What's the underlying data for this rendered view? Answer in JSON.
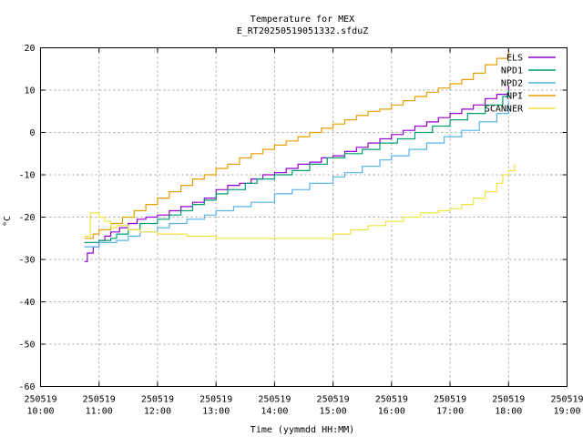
{
  "chart_data": {
    "type": "line",
    "title": "Temperature for MEX",
    "subtitle": "E_RT20250519051332.sfduZ",
    "xlabel": "Time (yymmdd HH:MM)",
    "ylabel": "°C",
    "xlim": [
      10,
      19
    ],
    "ylim": [
      -60,
      20
    ],
    "x_ticks": [
      {
        "value": 10,
        "date": "250519",
        "time": "10:00"
      },
      {
        "value": 11,
        "date": "250519",
        "time": "11:00"
      },
      {
        "value": 12,
        "date": "250519",
        "time": "12:00"
      },
      {
        "value": 13,
        "date": "250519",
        "time": "13:00"
      },
      {
        "value": 14,
        "date": "250519",
        "time": "14:00"
      },
      {
        "value": 15,
        "date": "250519",
        "time": "15:00"
      },
      {
        "value": 16,
        "date": "250519",
        "time": "16:00"
      },
      {
        "value": 17,
        "date": "250519",
        "time": "17:00"
      },
      {
        "value": 18,
        "date": "250519",
        "time": "18:00"
      },
      {
        "value": 19,
        "date": "250519",
        "time": "19:00"
      }
    ],
    "y_ticks": [
      "20",
      "10",
      "0",
      "-10",
      "-20",
      "-30",
      "-40",
      "-50",
      "-60"
    ],
    "y_tick_values": [
      20,
      10,
      0,
      -10,
      -20,
      -30,
      -40,
      -50,
      -60
    ],
    "grid": true,
    "legend_position": "top-right",
    "series": [
      {
        "name": "ELS",
        "color": "#9400d3",
        "x": [
          10.75,
          10.8,
          10.9,
          11.0,
          11.1,
          11.2,
          11.35,
          11.5,
          11.65,
          11.8,
          12.0,
          12.2,
          12.4,
          12.6,
          12.8,
          13.0,
          13.2,
          13.4,
          13.6,
          13.8,
          14.0,
          14.2,
          14.4,
          14.6,
          14.8,
          15.0,
          15.2,
          15.4,
          15.6,
          15.8,
          16.0,
          16.2,
          16.4,
          16.6,
          16.8,
          17.0,
          17.2,
          17.4,
          17.6,
          17.8,
          18.0
        ],
        "y": [
          -30.5,
          -28.5,
          -27,
          -25.5,
          -24.5,
          -23.5,
          -22.5,
          -21.5,
          -20.5,
          -20,
          -19.5,
          -18.5,
          -17.5,
          -16.5,
          -15.5,
          -13.5,
          -12.5,
          -12,
          -11,
          -10,
          -9.5,
          -8.5,
          -7.5,
          -7,
          -6,
          -5.5,
          -4.5,
          -3.5,
          -2.5,
          -1.5,
          -0.5,
          0.5,
          1.5,
          2.5,
          3.5,
          4.5,
          5.5,
          6.5,
          8,
          9,
          11
        ]
      },
      {
        "name": "NPD1",
        "color": "#009e73",
        "x": [
          10.75,
          11.0,
          11.2,
          11.3,
          11.5,
          11.7,
          12.0,
          12.2,
          12.4,
          12.6,
          12.8,
          13.0,
          13.2,
          13.5,
          13.7,
          14.0,
          14.3,
          14.6,
          14.9,
          15.2,
          15.5,
          15.8,
          16.1,
          16.4,
          16.7,
          17.0,
          17.3,
          17.6,
          17.9,
          18.0
        ],
        "y": [
          -26,
          -25.5,
          -25,
          -24,
          -23,
          -21.5,
          -20.5,
          -19.5,
          -18.5,
          -17,
          -16,
          -14.5,
          -13.5,
          -12,
          -11,
          -10,
          -9,
          -7.5,
          -6,
          -5,
          -4,
          -2.5,
          -1.5,
          0,
          1.5,
          3,
          4.5,
          6.5,
          8.5,
          10
        ]
      },
      {
        "name": "NPD2",
        "color": "#56b4e9",
        "x": [
          10.75,
          11.0,
          11.3,
          11.5,
          11.7,
          12.0,
          12.2,
          12.5,
          12.8,
          13.0,
          13.3,
          13.6,
          14.0,
          14.3,
          14.6,
          15.0,
          15.2,
          15.5,
          15.8,
          16.0,
          16.3,
          16.6,
          16.9,
          17.2,
          17.5,
          17.8,
          18.0
        ],
        "y": [
          -27,
          -26,
          -25.5,
          -24.5,
          -23.5,
          -22.5,
          -21.5,
          -20.5,
          -19.5,
          -18.5,
          -17.5,
          -16.5,
          -14.5,
          -13.5,
          -12,
          -10.5,
          -9.5,
          -8,
          -6.5,
          -5.5,
          -4,
          -2.5,
          -1,
          0.5,
          2.5,
          4.5,
          7.5
        ]
      },
      {
        "name": "NPI",
        "color": "#e69f00",
        "x": [
          10.75,
          10.9,
          11.0,
          11.2,
          11.4,
          11.6,
          11.8,
          12.0,
          12.2,
          12.4,
          12.6,
          12.8,
          13.0,
          13.2,
          13.4,
          13.6,
          13.8,
          14.0,
          14.2,
          14.4,
          14.6,
          14.8,
          15.0,
          15.2,
          15.4,
          15.6,
          15.8,
          16.0,
          16.2,
          16.4,
          16.6,
          16.8,
          17.0,
          17.2,
          17.4,
          17.6,
          17.8,
          18.0
        ],
        "y": [
          -25,
          -24,
          -23,
          -21.5,
          -20,
          -18.5,
          -17,
          -15.5,
          -14,
          -12.5,
          -11,
          -10,
          -8.5,
          -7.5,
          -6,
          -5,
          -4,
          -3,
          -2,
          -1,
          0,
          1,
          2,
          3,
          4,
          5,
          5.5,
          6.5,
          7.5,
          8.5,
          9.5,
          10.5,
          11.5,
          12.5,
          14,
          16,
          17.5,
          19.5
        ]
      },
      {
        "name": "SCANNER",
        "color": "#f0e442",
        "x": [
          10.75,
          10.85,
          11.0,
          11.1,
          11.2,
          11.3,
          11.5,
          11.7,
          12.0,
          12.5,
          13.0,
          13.5,
          14.0,
          14.5,
          15.0,
          15.3,
          15.6,
          15.9,
          16.2,
          16.5,
          16.8,
          17.0,
          17.2,
          17.4,
          17.6,
          17.8,
          17.9,
          18.0,
          18.1
        ],
        "y": [
          -24.5,
          -19,
          -20,
          -21,
          -22.5,
          -22,
          -23,
          -23.5,
          -24,
          -24.5,
          -25,
          -25,
          -25,
          -25,
          -24,
          -23,
          -22,
          -21,
          -20,
          -19,
          -18.5,
          -18,
          -17,
          -15.5,
          -14,
          -12,
          -10,
          -9,
          -7.5
        ]
      }
    ]
  }
}
